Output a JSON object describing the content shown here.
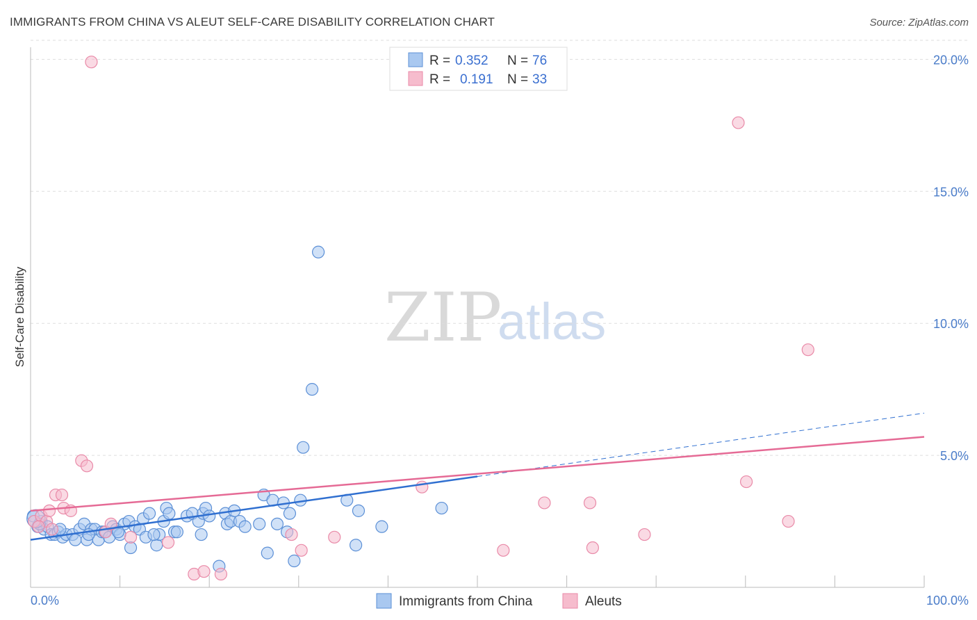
{
  "title": "IMMIGRANTS FROM CHINA VS ALEUT SELF-CARE DISABILITY CORRELATION CHART",
  "source": "Source: ZipAtlas.com",
  "watermark": {
    "part1": "ZIP",
    "part2": "atlas"
  },
  "legend": {
    "rows": [
      {
        "r_label": "R =",
        "r_value": "0.352",
        "n_label": "N =",
        "n_value": "76"
      },
      {
        "r_label": "R =",
        "r_value": "0.191",
        "n_label": "N =",
        "n_value": "33"
      }
    ]
  },
  "bottom_legend": [
    "Immigrants from China",
    "Aleuts"
  ],
  "colors": {
    "china_fill": "#a9c8f0",
    "china_stroke": "#5b8fd6",
    "china_line": "#2f6fd0",
    "aleut_fill": "#f6bccd",
    "aleut_stroke": "#e98aa8",
    "aleut_line": "#e56a95",
    "grid": "#dddddd",
    "tick_text": "#4a7cc9"
  },
  "chart_data": {
    "type": "scatter",
    "title": "IMMIGRANTS FROM CHINA VS ALEUT SELF-CARE DISABILITY CORRELATION CHART",
    "xlabel": "",
    "ylabel": "Self-Care Disability",
    "xlim": [
      0,
      100
    ],
    "ylim": [
      0,
      20.8
    ],
    "x_tick_labels": [
      "0.0%",
      "100.0%"
    ],
    "y_ticks": [
      5,
      10,
      15,
      20
    ],
    "y_tick_labels": [
      "5.0%",
      "10.0%",
      "15.0%",
      "20.0%"
    ],
    "grid": true,
    "legend_position": "top-center",
    "series": [
      {
        "name": "Immigrants from China",
        "r": 0.352,
        "n": 76,
        "trend": {
          "x0": 0,
          "y0": 1.8,
          "x1": 50,
          "y1": 4.2,
          "dashed_to_x": 100,
          "dashed_to_y": 6.6
        },
        "points": [
          [
            0.3,
            2.7
          ],
          [
            0.8,
            2.3
          ],
          [
            1.2,
            2.5
          ],
          [
            1.5,
            2.2
          ],
          [
            1.9,
            2.3
          ],
          [
            2.3,
            2.0
          ],
          [
            2.7,
            2.0
          ],
          [
            3.1,
            2.1
          ],
          [
            3.6,
            1.9
          ],
          [
            4.0,
            2.0
          ],
          [
            4.7,
            2.0
          ],
          [
            5.0,
            1.8
          ],
          [
            5.5,
            2.2
          ],
          [
            6.0,
            2.4
          ],
          [
            6.3,
            1.8
          ],
          [
            6.8,
            2.2
          ],
          [
            7.2,
            2.2
          ],
          [
            7.6,
            1.8
          ],
          [
            8.0,
            2.1
          ],
          [
            8.3,
            2.1
          ],
          [
            8.8,
            1.9
          ],
          [
            9.2,
            2.3
          ],
          [
            9.6,
            2.2
          ],
          [
            10.0,
            2.0
          ],
          [
            10.5,
            2.4
          ],
          [
            11.0,
            2.5
          ],
          [
            11.2,
            1.5
          ],
          [
            11.7,
            2.3
          ],
          [
            12.2,
            2.2
          ],
          [
            12.6,
            2.6
          ],
          [
            12.9,
            1.9
          ],
          [
            13.3,
            2.8
          ],
          [
            14.1,
            1.6
          ],
          [
            14.4,
            2.0
          ],
          [
            14.9,
            2.5
          ],
          [
            15.2,
            3.0
          ],
          [
            15.5,
            2.8
          ],
          [
            16.1,
            2.1
          ],
          [
            16.4,
            2.1
          ],
          [
            17.5,
            2.7
          ],
          [
            18.1,
            2.8
          ],
          [
            18.8,
            2.5
          ],
          [
            19.1,
            2.0
          ],
          [
            19.3,
            2.8
          ],
          [
            19.6,
            3.0
          ],
          [
            20.0,
            2.7
          ],
          [
            21.1,
            0.8
          ],
          [
            21.8,
            2.8
          ],
          [
            22.0,
            2.4
          ],
          [
            22.4,
            2.5
          ],
          [
            22.8,
            2.9
          ],
          [
            23.4,
            2.5
          ],
          [
            24.0,
            2.3
          ],
          [
            25.6,
            2.4
          ],
          [
            26.1,
            3.5
          ],
          [
            26.5,
            1.3
          ],
          [
            27.1,
            3.3
          ],
          [
            27.6,
            2.4
          ],
          [
            28.3,
            3.2
          ],
          [
            28.7,
            2.1
          ],
          [
            29.0,
            2.8
          ],
          [
            29.5,
            1.0
          ],
          [
            30.2,
            3.3
          ],
          [
            30.5,
            5.3
          ],
          [
            31.5,
            7.5
          ],
          [
            32.2,
            12.7
          ],
          [
            35.4,
            3.3
          ],
          [
            36.4,
            1.6
          ],
          [
            36.7,
            2.9
          ],
          [
            39.3,
            2.3
          ],
          [
            46.0,
            3.0
          ],
          [
            1.0,
            2.4
          ],
          [
            3.3,
            2.2
          ],
          [
            6.5,
            2.0
          ],
          [
            9.8,
            2.1
          ],
          [
            13.8,
            2.0
          ]
        ]
      },
      {
        "name": "Aleuts",
        "r": 0.191,
        "n": 33,
        "trend": {
          "x0": 0,
          "y0": 2.9,
          "x1": 100,
          "y1": 5.7
        },
        "points": [
          [
            0.4,
            2.5
          ],
          [
            1.2,
            2.7
          ],
          [
            1.8,
            2.5
          ],
          [
            2.1,
            2.9
          ],
          [
            2.8,
            3.5
          ],
          [
            3.5,
            3.5
          ],
          [
            3.7,
            3.0
          ],
          [
            4.5,
            2.9
          ],
          [
            5.7,
            4.8
          ],
          [
            6.3,
            4.6
          ],
          [
            8.4,
            2.1
          ],
          [
            9.0,
            2.4
          ],
          [
            11.2,
            1.9
          ],
          [
            15.4,
            1.7
          ],
          [
            18.3,
            0.5
          ],
          [
            19.4,
            0.6
          ],
          [
            21.3,
            0.5
          ],
          [
            29.2,
            2.0
          ],
          [
            30.3,
            1.4
          ],
          [
            34.0,
            1.9
          ],
          [
            43.8,
            3.8
          ],
          [
            52.9,
            1.4
          ],
          [
            57.5,
            3.2
          ],
          [
            62.9,
            1.5
          ],
          [
            62.6,
            3.2
          ],
          [
            68.7,
            2.0
          ],
          [
            79.2,
            17.6
          ],
          [
            80.1,
            4.0
          ],
          [
            84.8,
            2.5
          ],
          [
            87.0,
            9.0
          ],
          [
            6.8,
            19.9
          ],
          [
            0.9,
            2.3
          ],
          [
            2.4,
            2.2
          ]
        ]
      }
    ]
  }
}
